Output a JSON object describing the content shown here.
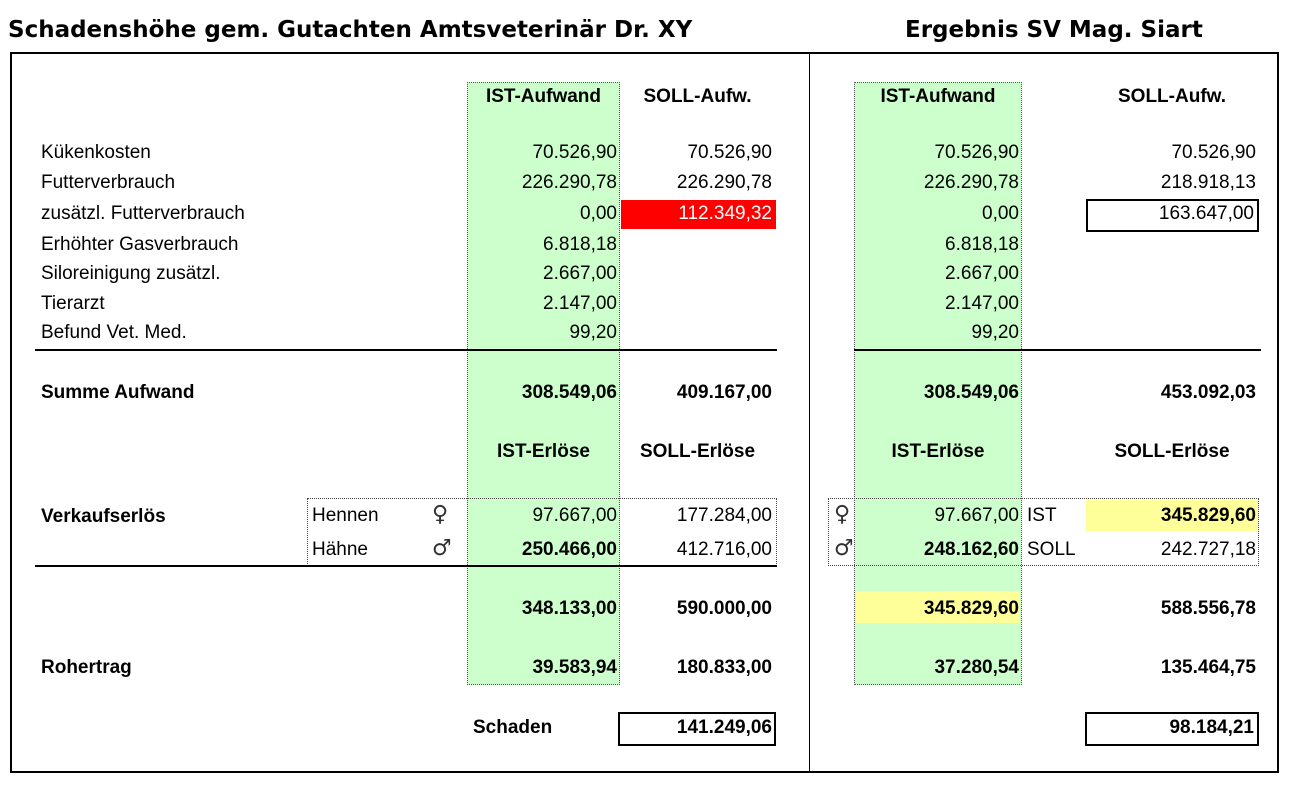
{
  "titles": {
    "left": "Schadenshöhe gem. Gutachten Amtsveterinär Dr. XY",
    "right": "Ergebnis SV Mag. Siart"
  },
  "headers": {
    "ist_aufwand": "IST-Aufwand",
    "soll_aufw": "SOLL-Aufw.",
    "ist_erloese": "IST-Erlöse",
    "soll_erloese": "SOLL-Erlöse"
  },
  "rows": [
    {
      "label": "Kükenkosten",
      "l_ist": "70.526,90",
      "l_soll": "70.526,90",
      "r_ist": "70.526,90",
      "r_soll": "70.526,90"
    },
    {
      "label": "Futterverbrauch",
      "l_ist": "226.290,78",
      "l_soll": "226.290,78",
      "r_ist": "226.290,78",
      "r_soll": "218.918,13"
    },
    {
      "label": "zusätzl. Futterverbrauch",
      "l_ist": "0,00",
      "l_soll": "112.349,32",
      "r_ist": "0,00",
      "r_soll": "163.647,00"
    },
    {
      "label": "Erhöhter Gasverbrauch",
      "l_ist": "6.818,18",
      "l_soll": "",
      "r_ist": "6.818,18",
      "r_soll": ""
    },
    {
      "label": "Siloreinigung zusätzl.",
      "l_ist": "2.667,00",
      "l_soll": "",
      "r_ist": "2.667,00",
      "r_soll": ""
    },
    {
      "label": "Tierarzt",
      "l_ist": "2.147,00",
      "l_soll": "",
      "r_ist": "2.147,00",
      "r_soll": ""
    },
    {
      "label": "Befund Vet. Med.",
      "l_ist": "99,20",
      "l_soll": "",
      "r_ist": "99,20",
      "r_soll": ""
    }
  ],
  "summe": {
    "label": "Summe Aufwand",
    "l_ist": "308.549,06",
    "l_soll": "409.167,00",
    "r_ist": "308.549,06",
    "r_soll": "453.092,03"
  },
  "verkauf": {
    "label": "Verkaufserlös",
    "hennen": {
      "label": "Hennen",
      "symbol": "♀",
      "l_ist": "97.667,00",
      "l_soll": "177.284,00",
      "r_ist": "97.667,00",
      "r_tag": "IST",
      "r_soll": "345.829,60"
    },
    "haehne": {
      "label": "Hähne",
      "symbol": "♂",
      "l_ist": "250.466,00",
      "l_soll": "412.716,00",
      "r_ist": "248.162,60",
      "r_tag": "SOLL",
      "r_soll": "242.727,18"
    }
  },
  "erloese_summe": {
    "l_ist": "348.133,00",
    "l_soll": "590.000,00",
    "r_ist": "345.829,60",
    "r_soll": "588.556,78"
  },
  "rohertrag": {
    "label": "Rohertrag",
    "l_ist": "39.583,94",
    "l_soll": "180.833,00",
    "r_ist": "37.280,54",
    "r_soll": "135.464,75"
  },
  "schaden": {
    "label": "Schaden",
    "left": "141.249,06",
    "right": "98.184,21"
  },
  "colors": {
    "green": "#ccffcc",
    "red": "#ff0000",
    "yellow": "#ffff99"
  }
}
